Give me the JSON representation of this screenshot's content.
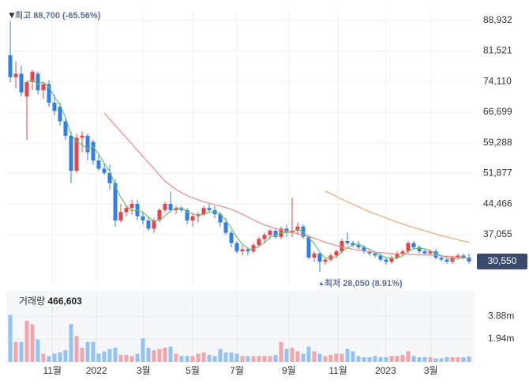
{
  "chart_data": {
    "type": "candlestick",
    "xticks": [
      {
        "value": 7.6,
        "label": "11월"
      },
      {
        "value": 15.6,
        "label": "2022"
      },
      {
        "value": 24.1,
        "label": "3월"
      },
      {
        "value": 33,
        "label": "5월"
      },
      {
        "value": 41,
        "label": "7월"
      },
      {
        "value": 50.4,
        "label": "9월"
      },
      {
        "value": 59.3,
        "label": "11월"
      },
      {
        "value": 67.9,
        "label": "2023"
      },
      {
        "value": 76.1,
        "label": "3월"
      }
    ],
    "ylim": [
      24600,
      91000
    ],
    "yticks": [
      {
        "value": 88932,
        "label": "88,932"
      },
      {
        "value": 81521,
        "label": "81,521"
      },
      {
        "value": 74110,
        "label": "74,110"
      },
      {
        "value": 66699,
        "label": "66,699"
      },
      {
        "value": 59288,
        "label": "59,288"
      },
      {
        "value": 51877,
        "label": "51,877"
      },
      {
        "value": 44466,
        "label": "44,466"
      },
      {
        "value": 37055,
        "label": "37,055"
      }
    ],
    "grid": true,
    "up_color": "#e5434b",
    "down_color": "#2f7fe6",
    "open": [
      80500,
      75200,
      76000,
      70500,
      74000,
      76000,
      72000,
      73500,
      69000,
      68000,
      64500,
      61000,
      52500,
      60500,
      61000,
      59500,
      55000,
      53000,
      52000,
      49500,
      40500,
      42500,
      43500,
      44500,
      41500,
      40500,
      38500,
      40500,
      43000,
      44500,
      43000,
      43500,
      43000,
      40500,
      41500,
      42000,
      43500,
      43000,
      42000,
      40000,
      37500,
      35000,
      33000,
      33500,
      33000,
      34500,
      36000,
      37000,
      38000,
      36500,
      38500,
      37500,
      38000,
      39000,
      36500,
      31500,
      32500,
      30500,
      31000,
      32000,
      33000,
      35500,
      35000,
      34500,
      34000,
      33000,
      32500,
      32000,
      31000,
      30500,
      31500,
      32500,
      33000,
      35000,
      34000,
      33000,
      32500,
      33000,
      31500,
      31000,
      30500,
      31500,
      32000,
      31500
    ],
    "high": [
      88700,
      79000,
      78000,
      74000,
      77000,
      76500,
      74000,
      74500,
      71000,
      69000,
      65500,
      62000,
      61500,
      62000,
      61500,
      60000,
      56500,
      54500,
      54000,
      50500,
      44500,
      44000,
      45500,
      45500,
      42500,
      41500,
      41000,
      43500,
      45000,
      47500,
      44000,
      44000,
      43500,
      42000,
      42500,
      44000,
      44500,
      44000,
      42500,
      41000,
      38000,
      35500,
      34500,
      34000,
      35000,
      36500,
      37500,
      38500,
      38500,
      39000,
      39500,
      46000,
      40000,
      39500,
      37000,
      33000,
      33000,
      31500,
      32500,
      33500,
      36000,
      37500,
      35500,
      35500,
      34500,
      33500,
      33000,
      32500,
      31500,
      32000,
      33000,
      33500,
      35500,
      35500,
      34500,
      33500,
      33500,
      33500,
      32000,
      31500,
      32000,
      32500,
      32500,
      32500
    ],
    "low": [
      74000,
      72500,
      70500,
      60000,
      72000,
      71000,
      70000,
      68000,
      66000,
      63500,
      60000,
      49500,
      52000,
      57000,
      55000,
      54000,
      52500,
      51500,
      48000,
      39000,
      40000,
      41500,
      42000,
      40500,
      39500,
      38000,
      37500,
      40000,
      42500,
      42500,
      42000,
      42500,
      39500,
      39000,
      40000,
      41500,
      42500,
      41000,
      39000,
      37000,
      34000,
      32500,
      32000,
      32000,
      32500,
      34000,
      35000,
      36000,
      36000,
      36000,
      36500,
      36500,
      37000,
      36000,
      31000,
      30500,
      28050,
      29800,
      30500,
      31500,
      32500,
      34500,
      34000,
      33500,
      32500,
      32000,
      31500,
      30500,
      29800,
      30000,
      31000,
      32000,
      32500,
      33500,
      32500,
      32000,
      32000,
      31000,
      30500,
      30000,
      30000,
      31000,
      31000,
      30000
    ],
    "close": [
      75200,
      76000,
      71500,
      74000,
      76500,
      72000,
      73500,
      69000,
      67000,
      64500,
      61000,
      52500,
      60500,
      61000,
      57000,
      55000,
      53000,
      52000,
      49500,
      40500,
      42500,
      43500,
      44500,
      41500,
      40500,
      38500,
      40500,
      43000,
      44500,
      43000,
      43500,
      43000,
      40500,
      41500,
      42000,
      43500,
      43000,
      42000,
      40000,
      37500,
      35000,
      33000,
      33500,
      33000,
      34500,
      36000,
      37000,
      38000,
      36500,
      38500,
      37500,
      38000,
      39000,
      36500,
      31500,
      32500,
      30500,
      31000,
      32000,
      33000,
      35500,
      35000,
      34500,
      34000,
      33000,
      32500,
      32000,
      31000,
      30500,
      31500,
      32500,
      33000,
      35000,
      34000,
      33000,
      32500,
      33000,
      31500,
      31000,
      30500,
      31500,
      32000,
      31500,
      30550
    ],
    "series": [
      {
        "color": "#6cc070",
        "values": [
          null,
          null,
          null,
          74200,
          74500,
          73500,
          74000,
          72800,
          70400,
          68500,
          65400,
          61300,
          59600,
          58800,
          57800,
          58400,
          56500,
          54300,
          52400,
          48800,
          46100,
          44000,
          42800,
          43000,
          42500,
          41300,
          40300,
          40600,
          41600,
          42800,
          43500,
          43500,
          42500,
          42100,
          41800,
          41900,
          42500,
          42600,
          42100,
          40600,
          38600,
          36400,
          34800,
          33600,
          33500,
          34300,
          35100,
          36400,
          36900,
          37500,
          37600,
          37600,
          38300,
          37800,
          36300,
          34900,
          32800,
          31400,
          31500,
          31600,
          32900,
          33900,
          34500,
          34800,
          34100,
          33500,
          32900,
          32100,
          31500,
          31300,
          31400,
          31900,
          33000,
          33600,
          33800,
          33600,
          33100,
          32500,
          32000,
          31500,
          31100,
          31300,
          31400,
          31400
        ]
      },
      {
        "color": "#f08a8a",
        "values": [
          null,
          null,
          null,
          null,
          null,
          null,
          null,
          null,
          null,
          null,
          null,
          null,
          null,
          null,
          null,
          null,
          null,
          66500,
          65000,
          63500,
          62000,
          60500,
          59000,
          57500,
          56000,
          54500,
          53000,
          51500,
          50000,
          49000,
          48000,
          47200,
          46500,
          46000,
          45500,
          45000,
          44700,
          44300,
          44000,
          43600,
          43200,
          42600,
          42000,
          41300,
          40600,
          40000,
          39400,
          39000,
          38600,
          38200,
          37900,
          37600,
          37300,
          37000,
          36600,
          36200,
          35700,
          35200,
          34800,
          34400,
          34100,
          33800,
          33500,
          33300,
          33100,
          32900,
          32800,
          32700,
          32600,
          32500,
          32400,
          32300,
          32300,
          32300,
          32200,
          32200,
          32100,
          32000,
          31900,
          31800,
          31700,
          31600,
          31500,
          31400
        ]
      },
      {
        "color": "#f4a870",
        "values": [
          null,
          null,
          null,
          null,
          null,
          null,
          null,
          null,
          null,
          null,
          null,
          null,
          null,
          null,
          null,
          null,
          null,
          null,
          null,
          null,
          null,
          null,
          null,
          null,
          null,
          null,
          null,
          null,
          null,
          null,
          null,
          null,
          null,
          null,
          null,
          null,
          null,
          null,
          null,
          null,
          null,
          null,
          null,
          null,
          null,
          null,
          null,
          null,
          null,
          null,
          null,
          null,
          null,
          null,
          null,
          null,
          null,
          47600,
          47000,
          46300,
          45600,
          45000,
          44400,
          43800,
          43200,
          42600,
          42100,
          41600,
          41100,
          40600,
          40100,
          39600,
          39200,
          38800,
          38400,
          38000,
          37600,
          37200,
          36800,
          36500,
          36100,
          35800,
          35500,
          35200
        ]
      }
    ],
    "high_annotation": "최고 88,700 (-65.56%)",
    "low_annotation": "최저 28,050 (8.91%)",
    "price_readout": "30,550",
    "volume": {
      "label": "거래량",
      "readout": "466,603",
      "ylim": [
        0,
        5900000
      ],
      "yticks": [
        {
          "value": 3880000,
          "label": "3.88m"
        },
        {
          "value": 1940000,
          "label": "1.94m"
        }
      ],
      "up_color": "#f2a5ab",
      "down_color": "#93c3f0",
      "values": [
        4000000,
        1700000,
        1700000,
        3500000,
        3200000,
        1900000,
        700000,
        500000,
        700000,
        800000,
        1000000,
        3200000,
        2200000,
        1200000,
        1700000,
        1700000,
        700000,
        900000,
        1100000,
        1200000,
        600000,
        600000,
        500000,
        700000,
        2000000,
        1200000,
        1000000,
        1100000,
        1200000,
        1300000,
        700000,
        500000,
        500000,
        500000,
        700000,
        800000,
        600000,
        500000,
        1100000,
        800000,
        800000,
        700000,
        500000,
        500000,
        500000,
        500000,
        500000,
        500000,
        600000,
        1700000,
        1100000,
        1200000,
        900000,
        700000,
        1300000,
        900000,
        700000,
        500000,
        600000,
        700000,
        700000,
        1100000,
        900000,
        500000,
        400000,
        400000,
        500000,
        400000,
        400000,
        500000,
        500000,
        600000,
        900000,
        500000,
        400000,
        400000,
        400000,
        300000,
        300000,
        400000,
        400000,
        400000,
        400000,
        466603
      ]
    }
  }
}
